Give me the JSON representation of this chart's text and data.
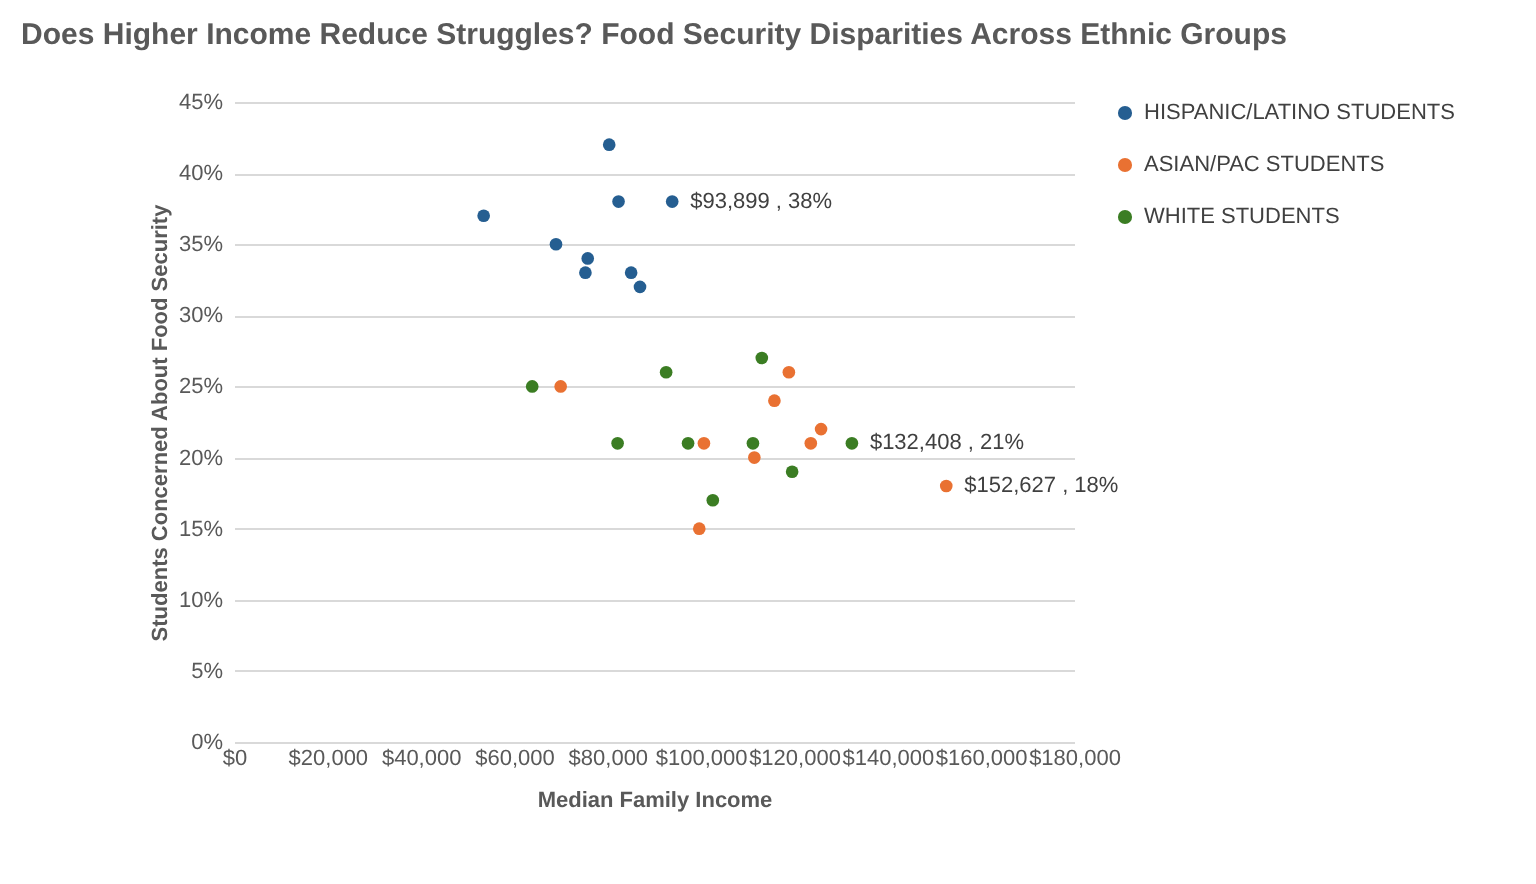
{
  "chart_data": {
    "type": "scatter",
    "title": "Does Higher Income Reduce Struggles? Food Security Disparities Across Ethnic Groups",
    "xlabel": "Median Family Income",
    "ylabel": "Students Concerned About Food Security",
    "xlim": [
      0,
      180000
    ],
    "xticks": [
      {
        "value": 0,
        "label": "$0"
      },
      {
        "value": 20000,
        "label": "$20,000"
      },
      {
        "value": 40000,
        "label": "$40,000"
      },
      {
        "value": 60000,
        "label": "$60,000"
      },
      {
        "value": 80000,
        "label": "$80,000"
      },
      {
        "value": 100000,
        "label": "$100,000"
      },
      {
        "value": 120000,
        "label": "$120,000"
      },
      {
        "value": 140000,
        "label": "$140,000"
      },
      {
        "value": 160000,
        "label": "$160,000"
      },
      {
        "value": 180000,
        "label": "$180,000"
      }
    ],
    "ylim": [
      0,
      45
    ],
    "yticks": [
      {
        "value": 0,
        "label": "0%"
      },
      {
        "value": 5,
        "label": "5%"
      },
      {
        "value": 10,
        "label": "10%"
      },
      {
        "value": 15,
        "label": "15%"
      },
      {
        "value": 20,
        "label": "20%"
      },
      {
        "value": 25,
        "label": "25%"
      },
      {
        "value": 30,
        "label": "30%"
      },
      {
        "value": 35,
        "label": "35%"
      },
      {
        "value": 40,
        "label": "40%"
      },
      {
        "value": 45,
        "label": "45%"
      }
    ],
    "grid": "y",
    "legend": "right",
    "marker": "circle",
    "series": [
      {
        "name": "HISPANIC/LATINO STUDENTS",
        "color": "#255e91",
        "x": [
          53500,
          69000,
          75800,
          75300,
          80400,
          82400,
          85100,
          87000,
          93899
        ],
        "values": [
          37,
          35,
          34,
          33,
          42,
          38,
          33,
          32,
          38
        ]
      },
      {
        "name": "ASIAN/PAC STUDENTS",
        "color": "#e97132",
        "x": [
          70000,
          118900,
          115800,
          125800,
          100700,
          123600,
          111500,
          99700,
          152627
        ],
        "values": [
          25,
          26,
          24,
          22,
          21,
          21,
          20,
          15,
          18
        ]
      },
      {
        "name": "WHITE STUDENTS",
        "color": "#3b7d23",
        "x": [
          63900,
          92600,
          113100,
          82200,
          97300,
          111200,
          132408,
          119600,
          102600
        ],
        "values": [
          25,
          26,
          27,
          21,
          21,
          21,
          21,
          19,
          17
        ]
      }
    ],
    "annotations": [
      {
        "text": "$93,899 , 38%",
        "x": 93899,
        "y": 38
      },
      {
        "text": "$132,408 , 21%",
        "x": 132408,
        "y": 21
      },
      {
        "text": "$152,627 , 18%",
        "x": 152627,
        "y": 18
      }
    ]
  }
}
